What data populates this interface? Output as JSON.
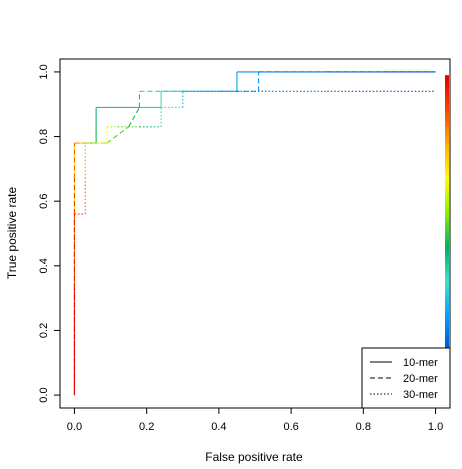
{
  "chart_data": {
    "type": "line",
    "title": "",
    "xlabel": "False positive rate",
    "ylabel": "True positive rate",
    "xlim": [
      -0.04,
      1.04
    ],
    "ylim": [
      -0.04,
      1.04
    ],
    "grid": false,
    "x_ticks": [
      "0.0",
      "0.2",
      "0.4",
      "0.6",
      "0.8",
      "1.0"
    ],
    "y_ticks": [
      "0.0",
      "0.2",
      "0.4",
      "0.6",
      "0.8",
      "1.0"
    ],
    "legend": {
      "position": "bottom-right",
      "entries": [
        {
          "label": "10-mer",
          "dash": "solid"
        },
        {
          "label": "20-mer",
          "dash": "dashed"
        },
        {
          "label": "30-mer",
          "dash": "dotted"
        }
      ]
    },
    "colorbar": {
      "position": "right-edge",
      "stops": [
        "#0050d0",
        "#00a0ff",
        "#40e0d0",
        "#00b060",
        "#90ee00",
        "#ffff00",
        "#ffb000",
        "#ff4000",
        "#e00000"
      ]
    },
    "series": [
      {
        "name": "10-mer",
        "dash": "solid",
        "x": [
          0.0,
          0.0,
          0.0,
          0.0,
          0.0,
          0.0,
          0.0,
          0.0,
          0.0,
          0.0,
          0.0,
          0.0,
          0.0,
          0.0,
          0.0,
          0.03,
          0.03,
          0.03,
          0.03,
          0.06,
          0.06,
          0.06,
          0.18,
          0.24,
          0.24,
          0.3,
          0.36,
          0.45,
          0.45,
          0.55,
          0.7,
          0.85,
          1.0
        ],
        "y": [
          0.0,
          0.06,
          0.11,
          0.17,
          0.22,
          0.28,
          0.33,
          0.39,
          0.44,
          0.5,
          0.56,
          0.61,
          0.67,
          0.72,
          0.78,
          0.78,
          0.78,
          0.78,
          0.78,
          0.78,
          0.83,
          0.89,
          0.89,
          0.89,
          0.94,
          0.94,
          0.94,
          0.94,
          1.0,
          1.0,
          1.0,
          1.0,
          1.0
        ]
      },
      {
        "name": "20-mer",
        "dash": "dashed",
        "x": [
          0.0,
          0.0,
          0.0,
          0.0,
          0.0,
          0.03,
          0.03,
          0.03,
          0.03,
          0.03,
          0.09,
          0.15,
          0.18,
          0.18,
          0.3,
          0.4,
          0.51,
          0.51,
          0.7,
          1.0
        ],
        "y": [
          0.0,
          0.33,
          0.56,
          0.67,
          0.78,
          0.78,
          0.78,
          0.78,
          0.78,
          0.78,
          0.78,
          0.83,
          0.89,
          0.94,
          0.94,
          0.94,
          0.94,
          1.0,
          1.0,
          1.0
        ]
      },
      {
        "name": "30-mer",
        "dash": "dotted",
        "x": [
          0.0,
          0.0,
          0.0,
          0.03,
          0.03,
          0.03,
          0.03,
          0.09,
          0.09,
          0.12,
          0.12,
          0.18,
          0.21,
          0.24,
          0.24,
          0.3,
          0.3,
          0.45,
          0.7,
          1.0
        ],
        "y": [
          0.0,
          0.33,
          0.56,
          0.56,
          0.67,
          0.78,
          0.78,
          0.78,
          0.83,
          0.83,
          0.83,
          0.83,
          0.83,
          0.83,
          0.89,
          0.89,
          0.94,
          0.94,
          0.94,
          0.94
        ]
      }
    ]
  }
}
